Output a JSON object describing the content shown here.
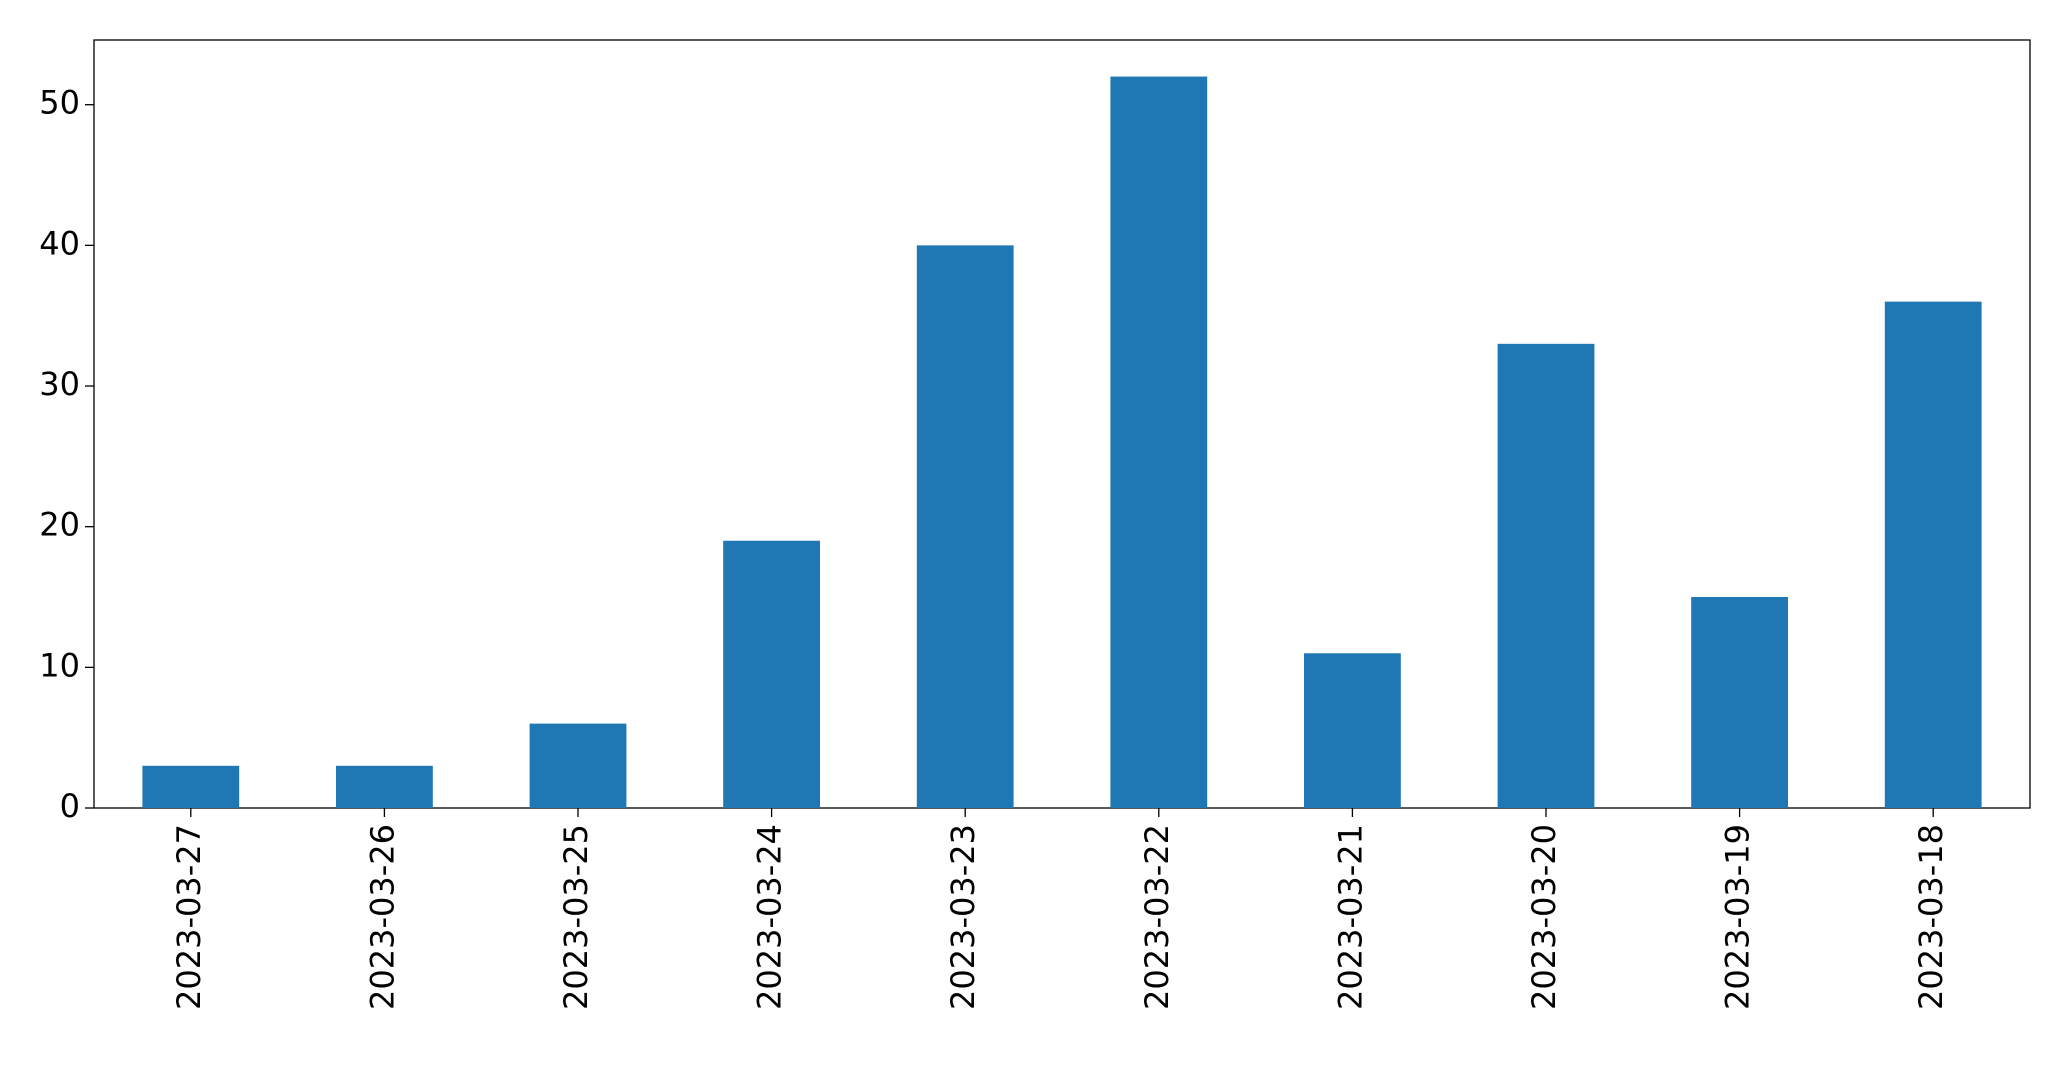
{
  "chart_data": {
    "type": "bar",
    "categories": [
      "2023-03-27",
      "2023-03-26",
      "2023-03-25",
      "2023-03-24",
      "2023-03-23",
      "2023-03-22",
      "2023-03-21",
      "2023-03-20",
      "2023-03-19",
      "2023-03-18"
    ],
    "values": [
      3,
      3,
      6,
      19,
      40,
      52,
      11,
      33,
      15,
      36
    ],
    "color": "#1f77b4",
    "ylim": [
      0,
      54.6
    ],
    "yticks": [
      0,
      10,
      20,
      30,
      40,
      50
    ],
    "grid": false
  }
}
